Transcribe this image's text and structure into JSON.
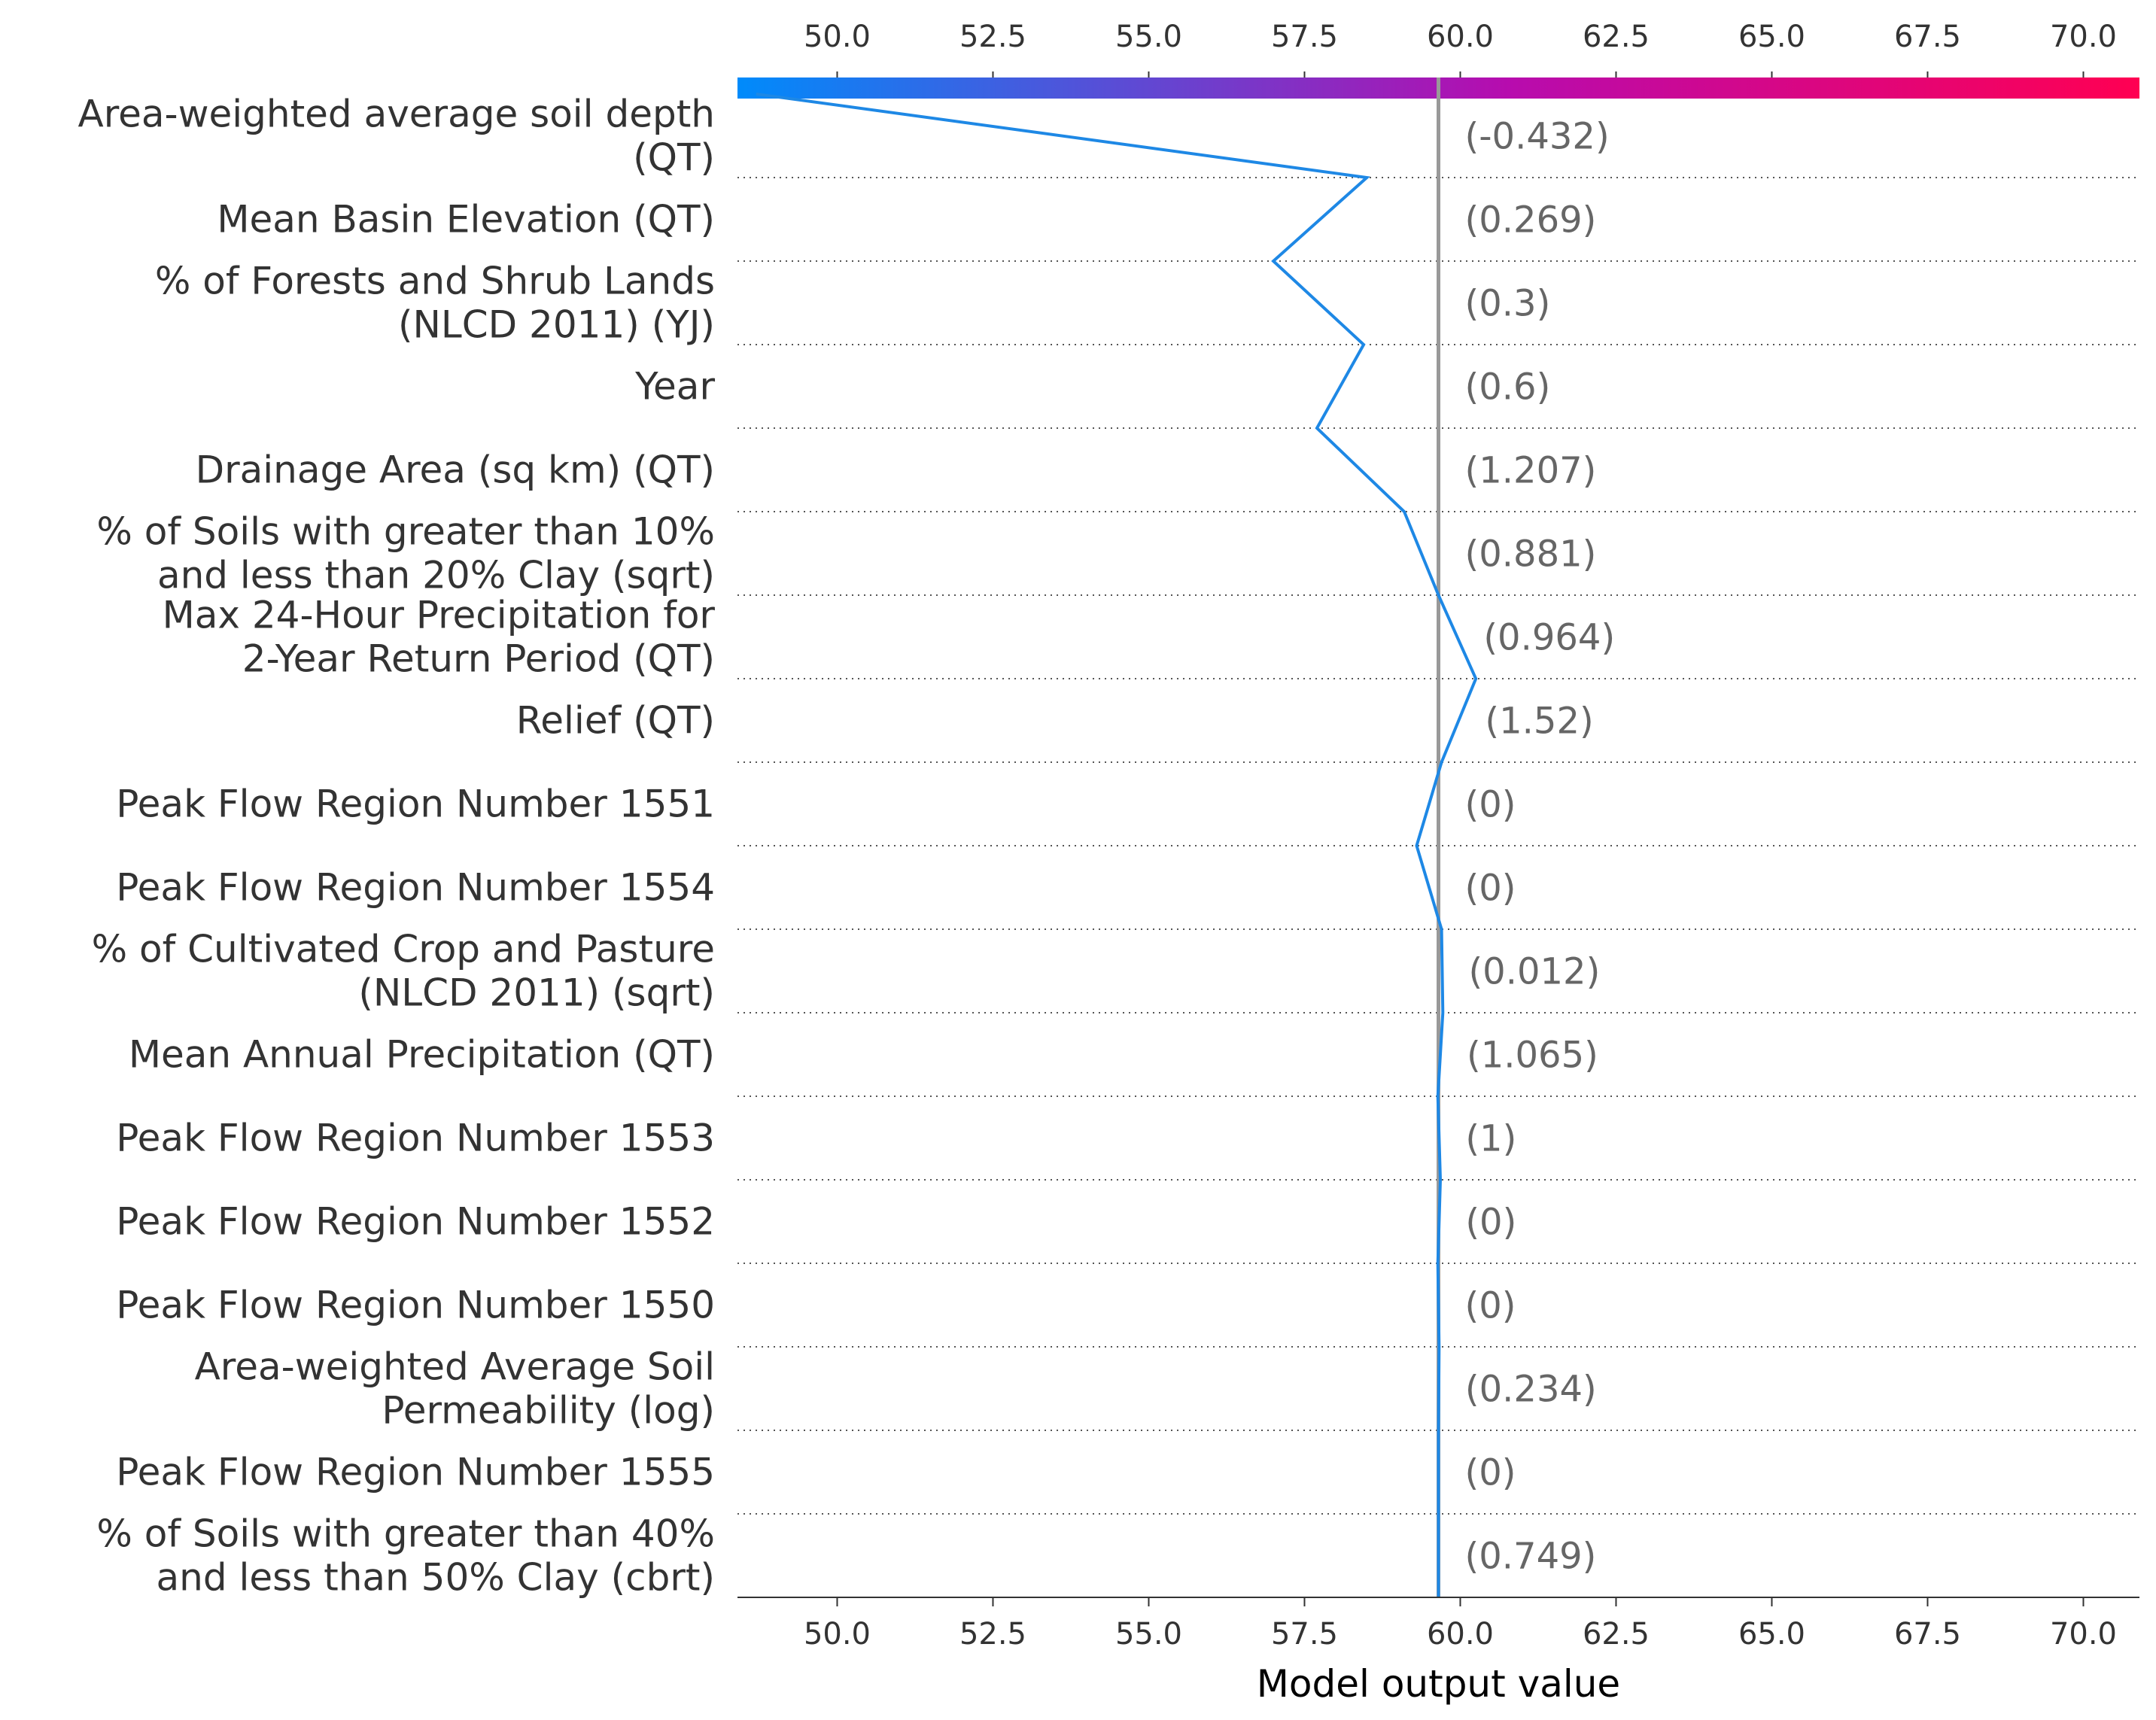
{
  "chart_data": {
    "type": "line",
    "xlabel": "Model output value",
    "xlim": [
      48.4,
      70.9
    ],
    "x_ticks": [
      "50.0",
      "52.5",
      "55.0",
      "57.5",
      "60.0",
      "62.5",
      "65.0",
      "67.5",
      "70.0"
    ],
    "x_tick_values": [
      50.0,
      52.5,
      55.0,
      57.5,
      60.0,
      62.5,
      65.0,
      67.5,
      70.0
    ],
    "base_value": 59.65,
    "features": [
      {
        "label": [
          "Area-weighted average soil depth",
          "(QT)"
        ],
        "value": "(-0.432)"
      },
      {
        "label": [
          "Mean Basin Elevation (QT)"
        ],
        "value": "(0.269)"
      },
      {
        "label": [
          "% of Forests and Shrub Lands",
          "(NLCD 2011) (YJ)"
        ],
        "value": "(0.3)"
      },
      {
        "label": [
          "Year"
        ],
        "value": "(0.6)"
      },
      {
        "label": [
          "Drainage Area (sq km) (QT)"
        ],
        "value": "(1.207)"
      },
      {
        "label": [
          "% of Soils with greater than 10%",
          "and less than 20% Clay (sqrt)"
        ],
        "value": "(0.881)"
      },
      {
        "label": [
          "Max 24-Hour Precipitation for",
          "2-Year Return Period (QT)"
        ],
        "value": "(0.964)"
      },
      {
        "label": [
          "Relief (QT)"
        ],
        "value": "(1.52)"
      },
      {
        "label": [
          "Peak Flow Region Number 1551"
        ],
        "value": "(0)"
      },
      {
        "label": [
          "Peak Flow Region Number 1554"
        ],
        "value": "(0)"
      },
      {
        "label": [
          "% of Cultivated Crop and Pasture",
          "(NLCD 2011) (sqrt)"
        ],
        "value": "(0.012)"
      },
      {
        "label": [
          "Mean Annual Precipitation (QT)"
        ],
        "value": "(1.065)"
      },
      {
        "label": [
          "Peak Flow Region Number 1553"
        ],
        "value": "(1)"
      },
      {
        "label": [
          "Peak Flow Region Number 1552"
        ],
        "value": "(0)"
      },
      {
        "label": [
          "Peak Flow Region Number 1550"
        ],
        "value": "(0)"
      },
      {
        "label": [
          "Area-weighted Average Soil",
          "Permeability (log)"
        ],
        "value": "(0.234)"
      },
      {
        "label": [
          "Peak Flow Region Number 1555"
        ],
        "value": "(0)"
      },
      {
        "label": [
          "% of Soils with greater than 40%",
          "and less than 50% Clay (cbrt)"
        ],
        "value": "(0.749)"
      }
    ],
    "path_x": [
      48.7,
      58.5,
      57.0,
      58.45,
      57.7,
      59.1,
      59.65,
      60.25,
      59.7,
      59.3,
      59.7,
      59.72,
      59.64,
      59.68,
      59.64,
      59.66,
      59.65,
      59.65,
      59.65
    ],
    "colorbar": {
      "low_color": "#008bfb",
      "mid_color": "#b70cae",
      "high_color": "#ff0052"
    },
    "colors": {
      "line": "#1e88e5",
      "base_line": "#999999",
      "grid": "#555555",
      "value_text": "#666666"
    }
  }
}
